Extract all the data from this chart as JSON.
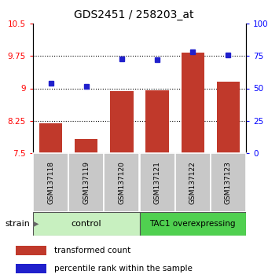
{
  "title": "GDS2451 / 258203_at",
  "samples": [
    "GSM137118",
    "GSM137119",
    "GSM137120",
    "GSM137121",
    "GSM137122",
    "GSM137123"
  ],
  "red_values": [
    8.2,
    7.82,
    8.93,
    8.95,
    9.82,
    9.15
  ],
  "blue_values": [
    9.12,
    9.05,
    9.68,
    9.67,
    9.85,
    9.78
  ],
  "ylim_left": [
    7.5,
    10.5
  ],
  "ylim_right": [
    0,
    100
  ],
  "yticks_left": [
    7.5,
    8.25,
    9.0,
    9.75,
    10.5
  ],
  "yticks_right": [
    0,
    25,
    50,
    75,
    100
  ],
  "ytick_labels_left": [
    "7.5",
    "8.25",
    "9",
    "9.75",
    "10.5"
  ],
  "ytick_labels_right": [
    "0",
    "25",
    "50",
    "75",
    "100%"
  ],
  "hlines": [
    8.25,
    9.0,
    9.75
  ],
  "bar_color": "#c0392b",
  "dot_color": "#2020cc",
  "bar_bottom": 7.5,
  "bar_width": 0.65,
  "control_label": "control",
  "tac1_label": "TAC1 overexpressing",
  "strain_label": "strain",
  "legend_red": "transformed count",
  "legend_blue": "percentile rank within the sample",
  "control_color": "#c8f0c0",
  "tac1_color": "#50d050",
  "sample_box_color": "#c8c8c8",
  "sample_box_edge": "#888888"
}
